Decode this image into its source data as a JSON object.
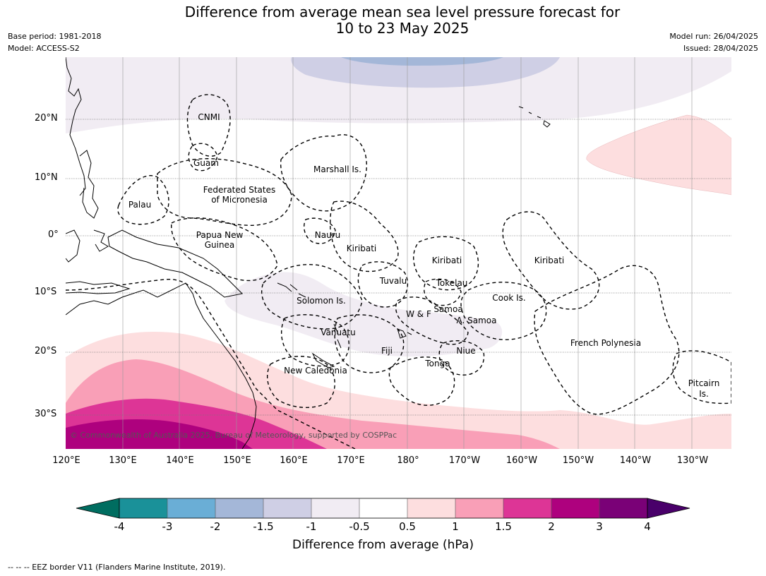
{
  "title": {
    "line1": "Difference from average mean sea level pressure forecast for",
    "line2": "10 to 23 May 2025"
  },
  "meta": {
    "base_period": "Base period: 1981-2018",
    "model": "Model: ACCESS-S2",
    "model_run": "Model run: 26/04/2025",
    "issued": "Issued: 28/04/2025"
  },
  "axes": {
    "lat_labels": [
      "20°N",
      "10°N",
      "0°",
      "10°S",
      "20°S",
      "30°S"
    ],
    "lon_labels": [
      "120°E",
      "130°E",
      "140°E",
      "150°E",
      "160°E",
      "170°E",
      "180°",
      "170°W",
      "160°W",
      "150°W",
      "140°W",
      "130°W"
    ]
  },
  "regions": {
    "cnmi": "CNMI",
    "guam": "Guam",
    "marshall": "Marshall Is.",
    "fsm1": "Federated States",
    "fsm2": "of Micronesia",
    "palau": "Palau",
    "png1": "Papua New",
    "png2": "Guinea",
    "nauru": "Nauru",
    "kiribati_w": "Kiribati",
    "kiribati_c": "Kiribati",
    "kiribati_e": "Kiribati",
    "tuvalu": "Tuvalu",
    "tokelau": "Tokelau",
    "solomon": "Solomon Is.",
    "samoa": "Samoa",
    "wf": "W & F",
    "asamoa": "A. Samoa",
    "cook": "Cook Is.",
    "vanuatu": "Vanuatu",
    "fiji": "Fiji",
    "niue": "Niue",
    "tonga": "Tonga",
    "frenchpoly": "French Polynesia",
    "newcal": "New Caledonia",
    "pitcairn1": "Pitcairn",
    "pitcairn2": "Is."
  },
  "copyright": "© Commonwealth of Australia 2025, Bureau of Meteorology, supported by COSPPac",
  "colorbar": {
    "title": "Difference from average (hPa)",
    "ticks": [
      "-4",
      "-3",
      "-2",
      "-1.5",
      "-1",
      "-0.5",
      "0.5",
      "1",
      "1.5",
      "2",
      "3",
      "4"
    ],
    "colors": {
      "below_-4": "#006d60",
      "-4_-3": "#1a9199",
      "-3_-2": "#6aaed6",
      "-2_-1.5": "#a4b7d8",
      "-1.5_-1": "#cfcfe5",
      "-1_-0.5": "#f1ecf3",
      "-0.5_0.5": "#ffffff",
      "0.5_1": "#fddedf",
      "1_1.5": "#f99fb7",
      "1.5_2": "#dd3596",
      "2_3": "#ae017e",
      "3_4": "#7a0177",
      "above_4": "#49006a"
    }
  },
  "footnote": "--  --  -- EEZ border V11 (Flanders Marine Institute, 2019)."
}
